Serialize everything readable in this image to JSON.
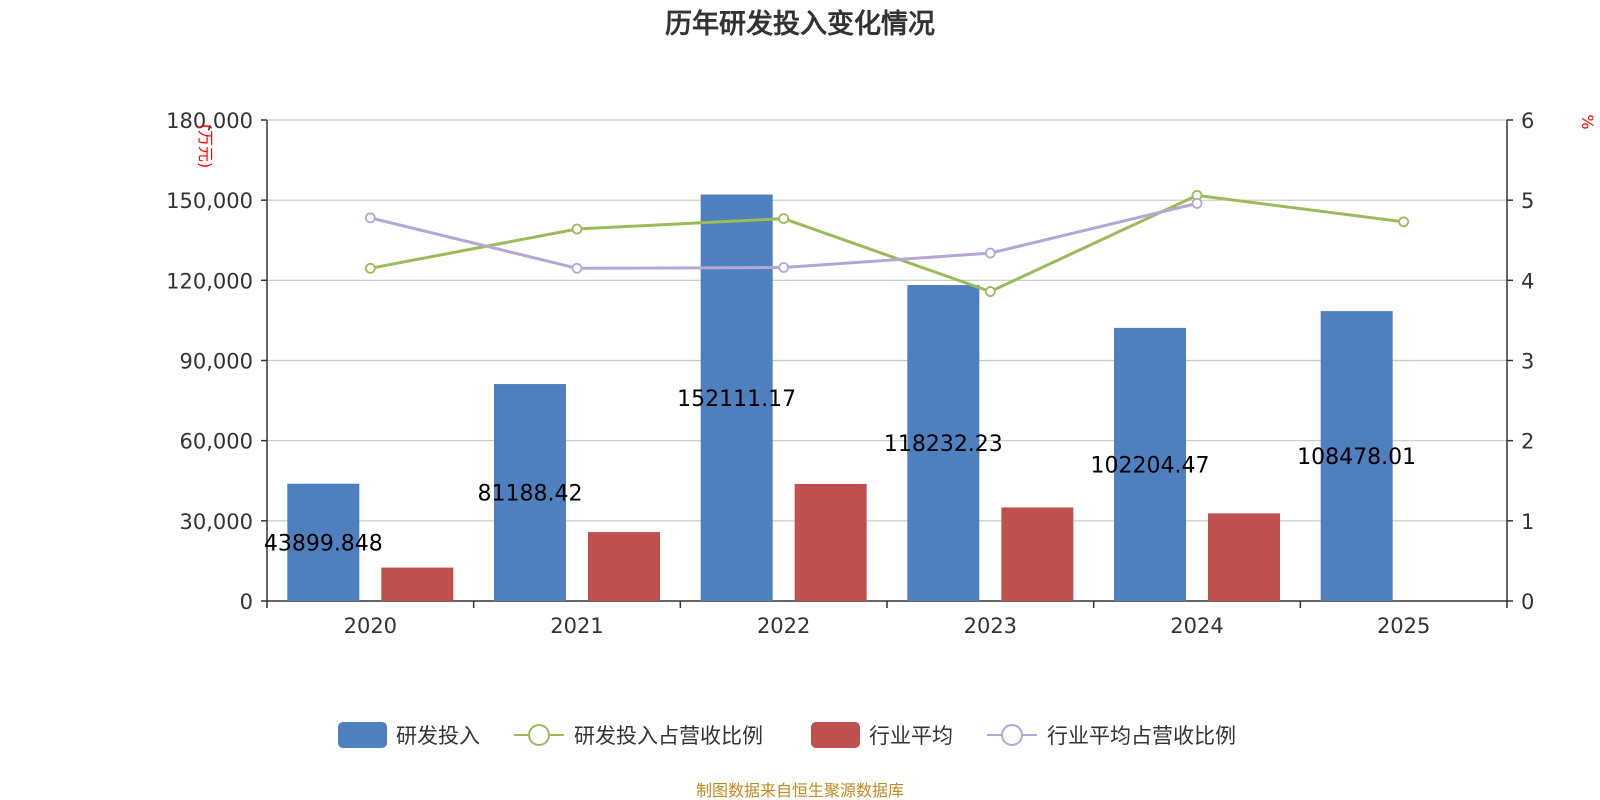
{
  "chart_data": {
    "type": "bar",
    "title": "历年研发投入变化情况",
    "categories": [
      "2020",
      "2021",
      "2022",
      "2023",
      "2024",
      "2025"
    ],
    "y_left": {
      "unit": "(万元)",
      "min": 0,
      "max": 180000,
      "ticks": [
        "0",
        "30,000",
        "60,000",
        "90,000",
        "120,000",
        "150,000",
        "180,000"
      ]
    },
    "y_right": {
      "unit": "%",
      "min": 0,
      "max": 6,
      "ticks": [
        "0",
        "1",
        "2",
        "3",
        "4",
        "5",
        "6"
      ]
    },
    "grid": true,
    "legend_position": "bottom-center",
    "series": [
      {
        "name": "研发投入",
        "kind": "bar",
        "axis": "left",
        "color": "#4e7fbf",
        "values": [
          43899.848,
          81188.42,
          152111.17,
          118232.23,
          102204.47,
          108478.01
        ],
        "labels": [
          "43899.848",
          "81188.42",
          "152111.17",
          "118232.23",
          "102204.47",
          "108478.01"
        ]
      },
      {
        "name": "研发投入占营收比例",
        "kind": "line",
        "axis": "right",
        "color": "#9bbb59",
        "values": [
          4.15,
          4.64,
          4.77,
          3.86,
          5.06,
          4.73
        ]
      },
      {
        "name": "行业平均",
        "kind": "bar",
        "axis": "left",
        "color": "#c0504d",
        "values": [
          12500,
          25800,
          43800,
          35000,
          32800,
          null
        ]
      },
      {
        "name": "行业平均占营收比例",
        "kind": "line",
        "axis": "right",
        "color": "#b4a7d6",
        "values": [
          4.78,
          4.15,
          4.16,
          4.34,
          4.96,
          null
        ]
      }
    ],
    "source": "制图数据来自恒生聚源数据库"
  }
}
